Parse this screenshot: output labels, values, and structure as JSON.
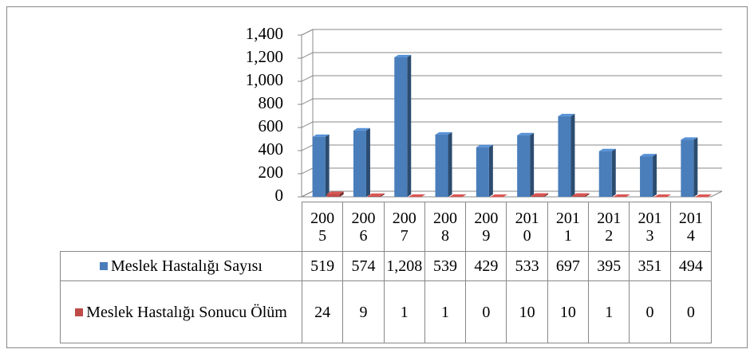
{
  "chart_data": {
    "type": "bar3d",
    "categories": [
      "2005",
      "2006",
      "2007",
      "2008",
      "2009",
      "2010",
      "2011",
      "2012",
      "2013",
      "2014"
    ],
    "series": [
      {
        "name": "Meslek Hastalığı Sayısı",
        "color": "#4a7ebb",
        "values": [
          519,
          574,
          1208,
          539,
          429,
          533,
          697,
          395,
          351,
          494
        ],
        "value_labels": [
          "519",
          "574",
          "1,208",
          "539",
          "429",
          "533",
          "697",
          "395",
          "351",
          "494"
        ]
      },
      {
        "name": "Meslek Hastalığı Sonucu Ölüm",
        "color": "#be4b48",
        "values": [
          24,
          9,
          1,
          1,
          0,
          10,
          10,
          1,
          0,
          0
        ]
      }
    ],
    "ylim": [
      0,
      1400
    ],
    "yticks": [
      0,
      200,
      400,
      600,
      800,
      {
        "value": 1000,
        "label": "1,000"
      },
      {
        "value": 1200,
        "label": "1,200"
      },
      {
        "value": 1400,
        "label": "1,400"
      }
    ],
    "grid": true
  }
}
